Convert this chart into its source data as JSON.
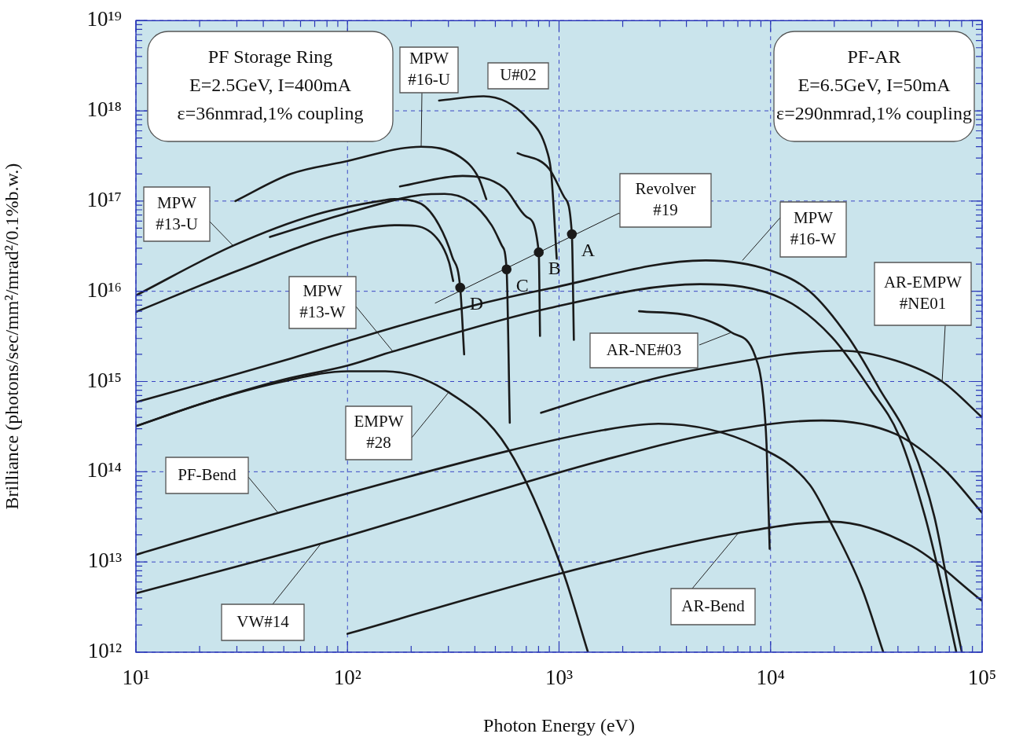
{
  "chart_data": {
    "type": "line",
    "xlabel": "Photon Energy (eV)",
    "ylabel": "Brilliance (photons/sec/mm²/mrad²/0.1%b.w.)",
    "log": "xy",
    "grid": true,
    "xlim": [
      10,
      100000
    ],
    "ylim": [
      1000000000000.0,
      1e+19
    ],
    "xticks": [
      {
        "value": 10,
        "label": "10¹"
      },
      {
        "value": 20,
        "label": null
      },
      {
        "value": 30,
        "label": null
      },
      {
        "value": 40,
        "label": null
      },
      {
        "value": 50,
        "label": null
      },
      {
        "value": 60,
        "label": null
      },
      {
        "value": 70,
        "label": null
      },
      {
        "value": 80,
        "label": null
      },
      {
        "value": 90,
        "label": null
      },
      {
        "value": 100,
        "label": "10²"
      },
      {
        "value": 200,
        "label": null
      },
      {
        "value": 300,
        "label": null
      },
      {
        "value": 400,
        "label": null
      },
      {
        "value": 500,
        "label": null
      },
      {
        "value": 600,
        "label": null
      },
      {
        "value": 700,
        "label": null
      },
      {
        "value": 800,
        "label": null
      },
      {
        "value": 900,
        "label": null
      },
      {
        "value": 1000,
        "label": "10³"
      },
      {
        "value": 2000,
        "label": null
      },
      {
        "value": 3000,
        "label": null
      },
      {
        "value": 4000,
        "label": null
      },
      {
        "value": 5000,
        "label": null
      },
      {
        "value": 6000,
        "label": null
      },
      {
        "value": 7000,
        "label": null
      },
      {
        "value": 8000,
        "label": null
      },
      {
        "value": 9000,
        "label": null
      },
      {
        "value": 10000,
        "label": "10⁴"
      },
      {
        "value": 20000,
        "label": null
      },
      {
        "value": 30000,
        "label": null
      },
      {
        "value": 40000,
        "label": null
      },
      {
        "value": 50000,
        "label": null
      },
      {
        "value": 60000,
        "label": null
      },
      {
        "value": 70000,
        "label": null
      },
      {
        "value": 80000,
        "label": null
      },
      {
        "value": 90000,
        "label": null
      },
      {
        "value": 100000,
        "label": "10⁵"
      }
    ],
    "yticks": [
      {
        "value": 1000000000000.0,
        "label": "10¹²"
      },
      {
        "value": 2000000000000.0,
        "label": null
      },
      {
        "value": 3000000000000.0,
        "label": null
      },
      {
        "value": 4000000000000.0,
        "label": null
      },
      {
        "value": 5000000000000.0,
        "label": null
      },
      {
        "value": 6000000000000.0,
        "label": null
      },
      {
        "value": 7000000000000.0,
        "label": null
      },
      {
        "value": 8000000000000.0,
        "label": null
      },
      {
        "value": 9000000000000.0,
        "label": null
      },
      {
        "value": 10000000000000.0,
        "label": "10¹³"
      },
      {
        "value": 20000000000000.0,
        "label": null
      },
      {
        "value": 30000000000000.0,
        "label": null
      },
      {
        "value": 40000000000000.0,
        "label": null
      },
      {
        "value": 50000000000000.0,
        "label": null
      },
      {
        "value": 60000000000000.0,
        "label": null
      },
      {
        "value": 70000000000000.0,
        "label": null
      },
      {
        "value": 80000000000000.0,
        "label": null
      },
      {
        "value": 90000000000000.0,
        "label": null
      },
      {
        "value": 100000000000000.0,
        "label": "10¹⁴"
      },
      {
        "value": 200000000000000.0,
        "label": null
      },
      {
        "value": 300000000000000.0,
        "label": null
      },
      {
        "value": 400000000000000.0,
        "label": null
      },
      {
        "value": 500000000000000.0,
        "label": null
      },
      {
        "value": 600000000000000.0,
        "label": null
      },
      {
        "value": 700000000000000.0,
        "label": null
      },
      {
        "value": 800000000000000.0,
        "label": null
      },
      {
        "value": 900000000000000.0,
        "label": null
      },
      {
        "value": 1000000000000000.0,
        "label": "10¹⁵"
      },
      {
        "value": 2000000000000000.0,
        "label": null
      },
      {
        "value": 3000000000000000.0,
        "label": null
      },
      {
        "value": 4000000000000000.0,
        "label": null
      },
      {
        "value": 5000000000000000.0,
        "label": null
      },
      {
        "value": 6000000000000000.0,
        "label": null
      },
      {
        "value": 7000000000000000.0,
        "label": null
      },
      {
        "value": 8000000000000000.0,
        "label": null
      },
      {
        "value": 9000000000000000.0,
        "label": null
      },
      {
        "value": 1e+16,
        "label": "10¹⁶"
      },
      {
        "value": 2e+16,
        "label": null
      },
      {
        "value": 3e+16,
        "label": null
      },
      {
        "value": 4e+16,
        "label": null
      },
      {
        "value": 5e+16,
        "label": null
      },
      {
        "value": 6e+16,
        "label": null
      },
      {
        "value": 7e+16,
        "label": null
      },
      {
        "value": 8e+16,
        "label": null
      },
      {
        "value": 9e+16,
        "label": null
      },
      {
        "value": 1e+17,
        "label": "10¹⁷"
      },
      {
        "value": 2e+17,
        "label": null
      },
      {
        "value": 3e+17,
        "label": null
      },
      {
        "value": 4e+17,
        "label": null
      },
      {
        "value": 5e+17,
        "label": null
      },
      {
        "value": 6e+17,
        "label": null
      },
      {
        "value": 7e+17,
        "label": null
      },
      {
        "value": 8e+17,
        "label": null
      },
      {
        "value": 9e+17,
        "label": null
      },
      {
        "value": 1e+18,
        "label": "10¹⁸"
      },
      {
        "value": 2e+18,
        "label": null
      },
      {
        "value": 3e+18,
        "label": null
      },
      {
        "value": 4e+18,
        "label": null
      },
      {
        "value": 5e+18,
        "label": null
      },
      {
        "value": 6e+18,
        "label": null
      },
      {
        "value": 7e+18,
        "label": null
      },
      {
        "value": 8e+18,
        "label": null
      },
      {
        "value": 9e+18,
        "label": null
      },
      {
        "value": 1e+19,
        "label": "10¹⁹"
      }
    ],
    "series": [
      {
        "color": "#1a1a1a",
        "x": [
          29.5,
          54,
          95,
          223,
          339,
          417,
          453
        ],
        "values": [
          1e+17,
          2e+17,
          2.7e+17,
          4e+17,
          3.1e+17,
          1.8e+17,
          1.05e+17
        ]
      },
      {
        "color": "#1a1a1a",
        "x": [
          271,
          440,
          708,
          880,
          919,
          975
        ],
        "values": [
          1.3e+18,
          1.45e+18,
          8.3e+17,
          3.5e+17,
          2e+17,
          2.3e+16
        ]
      },
      {
        "color": "#1a1a1a",
        "x": [
          637,
          895,
          1060,
          1150,
          1175
        ],
        "values": [
          3.4e+17,
          2.3e+17,
          1.1e+17,
          4.3e+16,
          2900000000000000.0
        ]
      },
      {
        "color": "#1a1a1a",
        "x": [
          177,
          350,
          550,
          708,
          802,
          813
        ],
        "values": [
          1.45e+17,
          1.9e+17,
          1.4e+17,
          6.6e+16,
          2.7e+16,
          3200000000000000.0
        ]
      },
      {
        "color": "#1a1a1a",
        "x": [
          43,
          95,
          223,
          288,
          381,
          480,
          537,
          565,
          585
        ],
        "values": [
          4e+16,
          7.1e+16,
          1.17e+17,
          1.2e+17,
          9.8e+16,
          5.4e+16,
          3.2e+16,
          1.75e+16,
          350000000000000.0
        ]
      },
      {
        "color": "#1a1a1a",
        "x": [
          10,
          28.8,
          71,
          149,
          167,
          223,
          271,
          313,
          341,
          356
        ],
        "values": [
          9000000000000000.0,
          3.2e+16,
          7.1e+16,
          1.02e+17,
          1.05e+17,
          9.3e+16,
          5.4e+16,
          2.4e+16,
          1.1e+16,
          2000000000000000.0
        ]
      },
      {
        "color": "#1a1a1a",
        "x": [
          10,
          30.4,
          95,
          167,
          210,
          271,
          302,
          316
        ],
        "values": [
          5900000000000000.0,
          1.7e+16,
          4.4e+16,
          5.4e+16,
          5.3e+16,
          3.6e+16,
          2.1e+16,
          1.3e+16
        ]
      },
      {
        "color": "#1a1a1a",
        "x": [
          260,
          1910
        ],
        "values": [
          7400000000000000.0,
          7.3e+16
        ]
      },
      {
        "color": "#1a1a1a",
        "x": [
          10,
          26,
          54,
          100,
          351,
          895,
          4930,
          10000,
          15300,
          23300,
          32700,
          46400,
          59400,
          70500,
          80200
        ],
        "values": [
          590000000000000.0,
          1100000000000000.0,
          1800000000000000.0,
          2800000000000000.0,
          6500000000000000.0,
          1.07e+16,
          2.2e+16,
          1.7e+16,
          1e+16,
          3100000000000000.0,
          830000000000000.0,
          195000000000000.0,
          32000000000000.0,
          4200000000000.0,
          1000000000000.0
        ]
      },
      {
        "color": "#1a1a1a",
        "x": [
          10,
          22,
          50,
          100,
          164,
          895,
          4640,
          11600,
          19500,
          29500,
          40500,
          53700,
          63700,
          75500
        ],
        "values": [
          320000000000000.0,
          600000000000000.0,
          1050000000000000.0,
          1500000000000000.0,
          2150000000000000.0,
          6500000000000000.0,
          1.2e+16,
          8100000000000000.0,
          3100000000000000.0,
          830000000000000.0,
          250000000000000.0,
          32000000000000.0,
          6200000000000.0,
          1000000000000.0
        ]
      },
      {
        "color": "#1a1a1a",
        "x": [
          10,
          22,
          49.7,
          100,
          151,
          301,
          574,
          1035,
          1370
        ],
        "values": [
          320000000000000.0,
          600000000000000.0,
          1000000000000000.0,
          1300000000000000.0,
          1300000000000000.0,
          760000000000000.0,
          180000000000000.0,
          8300000000000.0,
          1000000000000.0
        ]
      },
      {
        "color": "#1a1a1a",
        "x": [
          10,
          47,
          574,
          1630,
          2950,
          8730,
          15300,
          19300,
          27100,
          34100
        ],
        "values": [
          12000000000000.0,
          35000000000000.0,
          170000000000000.0,
          290000000000000.0,
          340000000000000.0,
          190000000000000.0,
          72000000000000.0,
          27000000000000.0,
          5000000000000.0,
          1000000000000.0
        ]
      },
      {
        "color": "#1a1a1a",
        "x": [
          10,
          75,
          1630,
          6000,
          17500,
          39200,
          65900,
          100000
        ],
        "values": [
          4500000000000.0,
          16000000000000.0,
          135000000000000.0,
          280000000000000.0,
          370000000000000.0,
          260000000000000.0,
          107000000000000.0,
          35000000000000.0
        ]
      },
      {
        "color": "#1a1a1a",
        "x": [
          2390,
          4270,
          6530,
          8430,
          9180,
          9570,
          9900
        ],
        "values": [
          6000000000000000.0,
          5300000000000000.0,
          3500000000000000.0,
          1950000000000000.0,
          760000000000000.0,
          200000000000000.0,
          14000000000000.0
        ]
      },
      {
        "color": "#1a1a1a",
        "x": [
          822,
          2780,
          8730,
          11600,
          21500,
          39200,
          64700,
          100000
        ],
        "values": [
          450000000000000.0,
          1070000000000000.0,
          1800000000000000.0,
          2000000000000000.0,
          2200000000000000.0,
          1700000000000000.0,
          1000000000000000.0,
          400000000000000.0
        ]
      },
      {
        "color": "#1a1a1a",
        "x": [
          100,
          1070,
          7050,
          19500,
          46400,
          100000
        ],
        "values": [
          1600000000000.0,
          7700000000000.0,
          21000000000000.0,
          28000000000000.0,
          15000000000000.0,
          3700000000000.0
        ]
      },
      {
        "type": "scatter",
        "marker": "circle",
        "color": "#1a1a1a",
        "x": [
          341,
          565,
          802,
          1150
        ],
        "values": [
          1.1e+16,
          1.75e+16,
          2.7e+16,
          4.3e+16
        ]
      }
    ],
    "annotations": [
      "PF Storage Ring\nE=2.5GeV, I=400mA\nε=36nmrad,1% coupling",
      "PF-AR\nE=6.5GeV, I=50mA\nε=290nmrad,1% coupling",
      {
        "text": "A",
        "x": 1150,
        "y": 4.3e+16
      },
      {
        "text": "B",
        "x": 802,
        "y": 2.7e+16
      },
      {
        "text": "C",
        "x": 565,
        "y": 1.75e+16
      },
      {
        "text": "D",
        "x": 341,
        "y": 1.1e+16
      },
      {
        "text": "MPW #16-U",
        "x": 223,
        "y": 4e+17
      },
      {
        "text": "U#02",
        "x": 440,
        "y": 1.45e+18
      },
      {
        "text": "MPW #13-U",
        "x": 28.8,
        "y": 3.2e+16
      },
      {
        "text": "Revolver #19",
        "x": 1910,
        "y": 7.3e+16
      },
      {
        "text": "MPW #16-W",
        "x": 7360,
        "y": 2.2e+16
      },
      {
        "text": "MPW #13-W",
        "x": 164,
        "y": 2150000000000000.0
      },
      {
        "text": "EMPW #28",
        "x": 301,
        "y": 760000000000000.0
      },
      {
        "text": "PF-Bend",
        "x": 47,
        "y": 35000000000000.0
      },
      {
        "text": "VW#14",
        "x": 75,
        "y": 16000000000000.0
      },
      {
        "text": "AR-NE#03",
        "x": 6530,
        "y": 3500000000000000.0
      },
      {
        "text": "AR-EMPW #NE01",
        "x": 64700,
        "y": 1000000000000000.0
      },
      {
        "text": "AR-Bend",
        "x": 7050,
        "y": 21000000000000.0
      }
    ]
  }
}
